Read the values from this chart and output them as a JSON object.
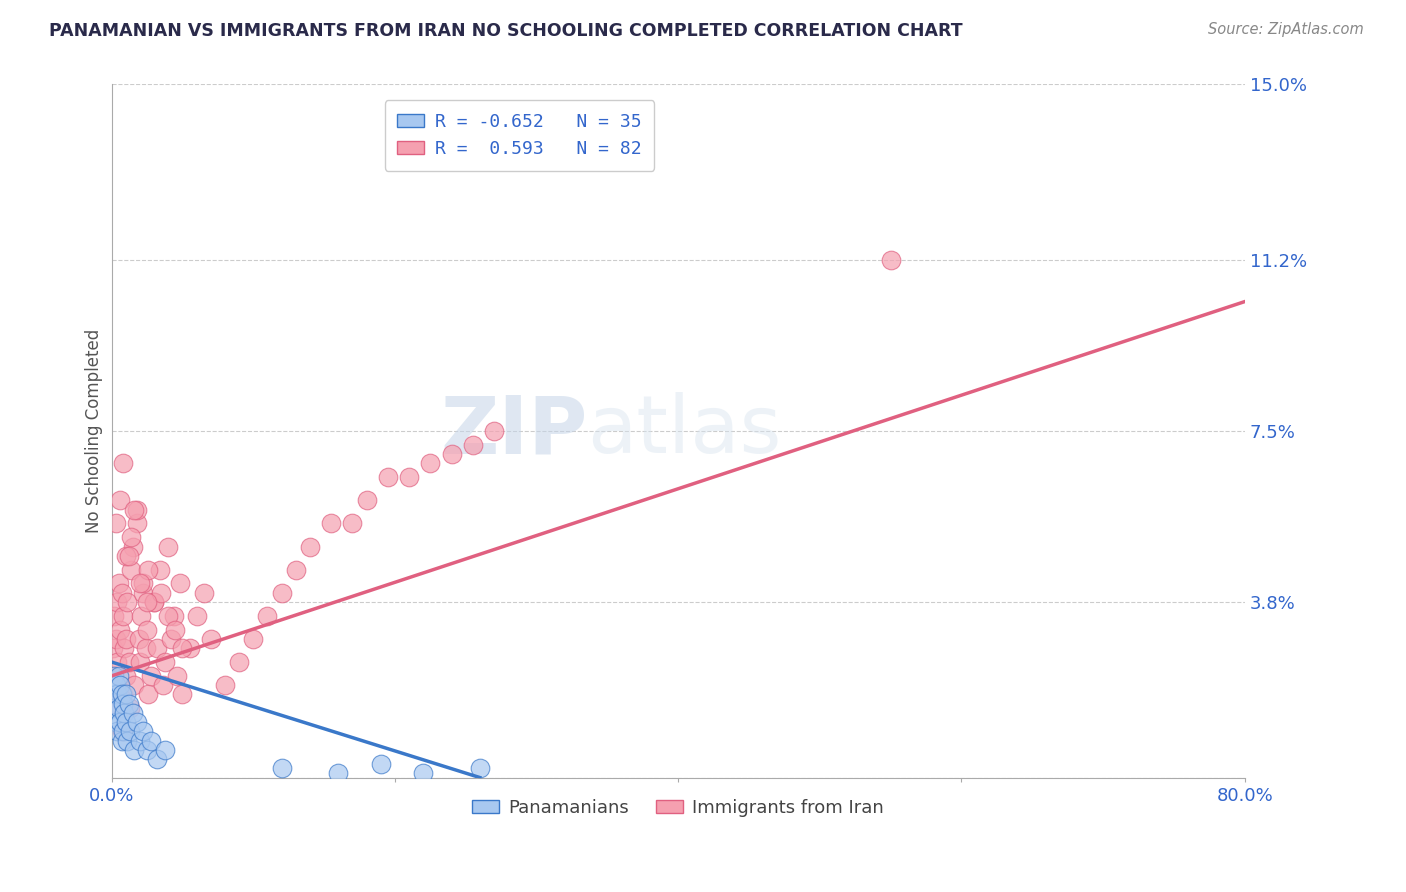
{
  "title": "PANAMANIAN VS IMMIGRANTS FROM IRAN NO SCHOOLING COMPLETED CORRELATION CHART",
  "source": "Source: ZipAtlas.com",
  "ylabel": "No Schooling Completed",
  "xlim": [
    0.0,
    0.8
  ],
  "ylim": [
    0.0,
    0.15
  ],
  "xticks": [
    0.0,
    0.2,
    0.4,
    0.6,
    0.8
  ],
  "xtick_labels": [
    "0.0%",
    "",
    "",
    "",
    "80.0%"
  ],
  "yticks": [
    0.0,
    0.038,
    0.075,
    0.112,
    0.15
  ],
  "ytick_labels": [
    "",
    "3.8%",
    "7.5%",
    "11.2%",
    "15.0%"
  ],
  "legend1_label": "R = -0.652   N = 35",
  "legend2_label": "R =  0.593   N = 82",
  "legend_foot1": "Panamanians",
  "legend_foot2": "Immigrants from Iran",
  "color_panama": "#a8c8f0",
  "color_iran": "#f5a0b0",
  "color_line_panama": "#3a78c9",
  "color_line_iran": "#e06080",
  "pan_line_x": [
    0.0,
    0.26
  ],
  "pan_line_y": [
    0.025,
    0.0
  ],
  "iran_line_x": [
    0.0,
    0.8
  ],
  "iran_line_y": [
    0.022,
    0.103
  ],
  "pan_scatter_x": [
    0.001,
    0.002,
    0.002,
    0.003,
    0.003,
    0.004,
    0.004,
    0.005,
    0.005,
    0.006,
    0.006,
    0.007,
    0.007,
    0.008,
    0.008,
    0.009,
    0.01,
    0.01,
    0.011,
    0.012,
    0.013,
    0.015,
    0.016,
    0.018,
    0.02,
    0.022,
    0.025,
    0.028,
    0.032,
    0.038,
    0.12,
    0.16,
    0.19,
    0.22,
    0.26
  ],
  "pan_scatter_y": [
    0.018,
    0.022,
    0.015,
    0.02,
    0.012,
    0.018,
    0.01,
    0.022,
    0.015,
    0.02,
    0.012,
    0.018,
    0.008,
    0.016,
    0.01,
    0.014,
    0.012,
    0.018,
    0.008,
    0.016,
    0.01,
    0.014,
    0.006,
    0.012,
    0.008,
    0.01,
    0.006,
    0.008,
    0.004,
    0.006,
    0.002,
    0.001,
    0.003,
    0.001,
    0.002
  ],
  "iran_scatter_x": [
    0.001,
    0.002,
    0.002,
    0.003,
    0.003,
    0.004,
    0.004,
    0.005,
    0.005,
    0.006,
    0.006,
    0.007,
    0.007,
    0.008,
    0.008,
    0.009,
    0.01,
    0.01,
    0.011,
    0.012,
    0.013,
    0.014,
    0.015,
    0.016,
    0.018,
    0.019,
    0.02,
    0.021,
    0.022,
    0.024,
    0.025,
    0.026,
    0.028,
    0.03,
    0.032,
    0.034,
    0.036,
    0.038,
    0.04,
    0.042,
    0.044,
    0.046,
    0.048,
    0.05,
    0.055,
    0.06,
    0.065,
    0.07,
    0.08,
    0.09,
    0.1,
    0.11,
    0.12,
    0.13,
    0.14,
    0.155,
    0.17,
    0.18,
    0.195,
    0.21,
    0.225,
    0.24,
    0.255,
    0.27,
    0.003,
    0.006,
    0.01,
    0.014,
    0.018,
    0.022,
    0.026,
    0.03,
    0.035,
    0.04,
    0.045,
    0.05,
    0.012,
    0.016,
    0.02,
    0.025,
    0.55,
    0.008
  ],
  "iran_scatter_y": [
    0.028,
    0.035,
    0.022,
    0.03,
    0.018,
    0.038,
    0.025,
    0.042,
    0.02,
    0.032,
    0.015,
    0.04,
    0.01,
    0.035,
    0.018,
    0.028,
    0.03,
    0.022,
    0.038,
    0.025,
    0.015,
    0.045,
    0.05,
    0.02,
    0.055,
    0.03,
    0.025,
    0.035,
    0.04,
    0.028,
    0.032,
    0.018,
    0.022,
    0.038,
    0.028,
    0.045,
    0.02,
    0.025,
    0.05,
    0.03,
    0.035,
    0.022,
    0.042,
    0.018,
    0.028,
    0.035,
    0.04,
    0.03,
    0.02,
    0.025,
    0.03,
    0.035,
    0.04,
    0.045,
    0.05,
    0.055,
    0.055,
    0.06,
    0.065,
    0.065,
    0.068,
    0.07,
    0.072,
    0.075,
    0.055,
    0.06,
    0.048,
    0.052,
    0.058,
    0.042,
    0.045,
    0.038,
    0.04,
    0.035,
    0.032,
    0.028,
    0.048,
    0.058,
    0.042,
    0.038,
    0.112,
    0.068
  ]
}
